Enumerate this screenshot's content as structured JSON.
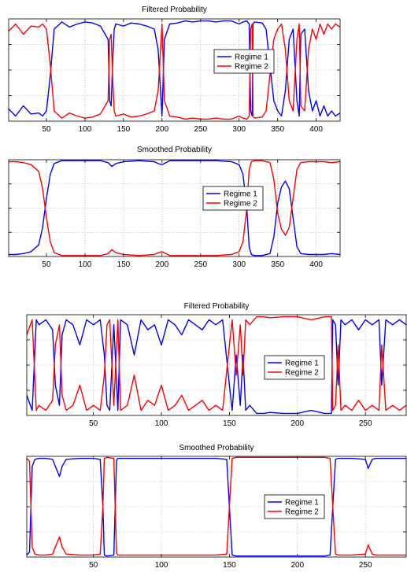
{
  "chart_data": [
    {
      "type": "line",
      "title": "Filtered Probability",
      "xlabel": "",
      "ylabel": "",
      "xlim": [
        1,
        431
      ],
      "ylim": [
        0,
        1
      ],
      "xticks": [
        50,
        100,
        150,
        200,
        250,
        300,
        350,
        400
      ],
      "xtick_labels": [
        "50",
        "100",
        "150",
        "200",
        "250",
        "300",
        "350",
        "400"
      ],
      "legend_position": "right-center",
      "grid": true,
      "series": [
        {
          "name": "Regime 1",
          "color": "#0000ff",
          "x": [
            1,
            10,
            20,
            30,
            40,
            45,
            50,
            55,
            60,
            70,
            80,
            90,
            100,
            110,
            120,
            130,
            132,
            134,
            136,
            138,
            140,
            150,
            160,
            170,
            180,
            190,
            195,
            198,
            200,
            203,
            210,
            220,
            230,
            240,
            250,
            260,
            270,
            280,
            290,
            300,
            305,
            310,
            313,
            315,
            317,
            318,
            320,
            330,
            335,
            340,
            345,
            350,
            355,
            360,
            365,
            370,
            375,
            378,
            380,
            385,
            390,
            395,
            400,
            405,
            410,
            415,
            420,
            425,
            431
          ],
          "y": [
            0.12,
            0.05,
            0.15,
            0.07,
            0.08,
            0.05,
            0.1,
            0.45,
            0.9,
            0.97,
            0.92,
            0.95,
            0.97,
            0.96,
            0.93,
            0.8,
            0.2,
            0.15,
            0.6,
            0.9,
            0.95,
            0.93,
            0.96,
            0.95,
            0.93,
            0.9,
            0.7,
            0.3,
            0.05,
            0.8,
            0.95,
            0.96,
            0.98,
            0.97,
            0.98,
            0.98,
            0.97,
            0.98,
            0.98,
            0.95,
            0.97,
            0.98,
            0.95,
            0.1,
            0.05,
            0.95,
            0.97,
            0.96,
            0.9,
            0.55,
            0.2,
            0.1,
            0.05,
            0.3,
            0.8,
            0.9,
            0.2,
            0.05,
            0.85,
            0.9,
            0.3,
            0.1,
            0.2,
            0.05,
            0.15,
            0.05,
            0.1,
            0.05,
            0.08
          ]
        },
        {
          "name": "Regime 2",
          "color": "#ff0000",
          "x": [
            1,
            10,
            20,
            30,
            40,
            45,
            50,
            55,
            60,
            70,
            80,
            90,
            100,
            110,
            120,
            130,
            132,
            134,
            136,
            138,
            140,
            150,
            160,
            170,
            180,
            190,
            195,
            198,
            200,
            203,
            210,
            220,
            230,
            240,
            250,
            260,
            270,
            280,
            290,
            300,
            305,
            310,
            313,
            315,
            317,
            318,
            320,
            330,
            335,
            340,
            345,
            350,
            355,
            360,
            365,
            370,
            375,
            378,
            380,
            385,
            390,
            395,
            400,
            405,
            410,
            415,
            420,
            425,
            431
          ],
          "y": [
            0.88,
            0.95,
            0.85,
            0.93,
            0.92,
            0.95,
            0.9,
            0.55,
            0.1,
            0.03,
            0.08,
            0.05,
            0.03,
            0.04,
            0.07,
            0.2,
            0.8,
            0.85,
            0.4,
            0.1,
            0.05,
            0.07,
            0.04,
            0.05,
            0.07,
            0.1,
            0.3,
            0.7,
            0.95,
            0.2,
            0.05,
            0.04,
            0.02,
            0.03,
            0.02,
            0.02,
            0.03,
            0.02,
            0.02,
            0.05,
            0.03,
            0.02,
            0.05,
            0.9,
            0.95,
            0.05,
            0.03,
            0.04,
            0.1,
            0.45,
            0.8,
            0.9,
            0.95,
            0.7,
            0.2,
            0.1,
            0.8,
            0.95,
            0.15,
            0.1,
            0.7,
            0.9,
            0.8,
            0.95,
            0.85,
            0.95,
            0.9,
            0.95,
            0.92
          ]
        }
      ]
    },
    {
      "type": "line",
      "title": "Smoothed Probability",
      "xlabel": "",
      "ylabel": "",
      "xlim": [
        1,
        431
      ],
      "ylim": [
        0,
        1
      ],
      "xticks": [
        50,
        100,
        150,
        200,
        250,
        300,
        350,
        400
      ],
      "xtick_labels": [
        "50",
        "100",
        "150",
        "200",
        "250",
        "300",
        "350",
        "400"
      ],
      "legend_position": "center",
      "grid": true,
      "series": [
        {
          "name": "Regime 1",
          "color": "#0000ff",
          "x": [
            1,
            10,
            20,
            30,
            40,
            45,
            50,
            55,
            60,
            70,
            80,
            100,
            120,
            130,
            135,
            140,
            150,
            170,
            190,
            195,
            200,
            205,
            210,
            230,
            250,
            270,
            290,
            300,
            305,
            310,
            313,
            316,
            320,
            330,
            340,
            345,
            350,
            355,
            360,
            365,
            370,
            375,
            380,
            390,
            400,
            410,
            420,
            431
          ],
          "y": [
            0.02,
            0.02,
            0.03,
            0.05,
            0.12,
            0.3,
            0.6,
            0.85,
            0.96,
            0.99,
            0.99,
            0.99,
            0.99,
            0.97,
            0.93,
            0.96,
            0.98,
            0.99,
            0.98,
            0.96,
            0.95,
            0.97,
            0.99,
            0.99,
            0.99,
            0.99,
            0.98,
            0.95,
            0.85,
            0.5,
            0.1,
            0.02,
            0.01,
            0.01,
            0.03,
            0.2,
            0.55,
            0.72,
            0.78,
            0.7,
            0.4,
            0.1,
            0.03,
            0.02,
            0.02,
            0.02,
            0.03,
            0.02
          ]
        },
        {
          "name": "Regime 2",
          "color": "#ff0000",
          "x": [
            1,
            10,
            20,
            30,
            40,
            45,
            50,
            55,
            60,
            70,
            80,
            100,
            120,
            130,
            135,
            140,
            150,
            170,
            190,
            195,
            200,
            205,
            210,
            230,
            250,
            270,
            290,
            300,
            305,
            310,
            313,
            316,
            320,
            330,
            340,
            345,
            350,
            355,
            360,
            365,
            370,
            375,
            380,
            390,
            400,
            410,
            420,
            431
          ],
          "y": [
            0.98,
            0.98,
            0.97,
            0.95,
            0.88,
            0.7,
            0.4,
            0.15,
            0.04,
            0.01,
            0.01,
            0.01,
            0.01,
            0.03,
            0.07,
            0.04,
            0.02,
            0.01,
            0.02,
            0.04,
            0.05,
            0.03,
            0.01,
            0.01,
            0.01,
            0.01,
            0.02,
            0.05,
            0.15,
            0.5,
            0.9,
            0.98,
            0.99,
            0.99,
            0.97,
            0.8,
            0.45,
            0.28,
            0.22,
            0.3,
            0.6,
            0.9,
            0.97,
            0.98,
            0.98,
            0.98,
            0.97,
            0.98
          ]
        }
      ]
    },
    {
      "type": "line",
      "title": "Filtered Probability",
      "xlabel": "",
      "ylabel": "",
      "xlim": [
        1,
        280
      ],
      "ylim": [
        0,
        1
      ],
      "xticks": [
        50,
        100,
        150,
        200,
        250
      ],
      "xtick_labels": [
        "50",
        "100",
        "150",
        "200",
        "250"
      ],
      "legend_position": "right-center",
      "grid": true,
      "series": [
        {
          "name": "Regime 1",
          "color": "#0000ff",
          "x": [
            1,
            5,
            8,
            10,
            15,
            20,
            22,
            25,
            27,
            30,
            35,
            40,
            45,
            50,
            55,
            58,
            60,
            62,
            65,
            68,
            70,
            75,
            80,
            85,
            90,
            95,
            100,
            105,
            110,
            115,
            120,
            125,
            130,
            135,
            140,
            145,
            150,
            152,
            155,
            158,
            160,
            162,
            165,
            170,
            175,
            180,
            190,
            200,
            210,
            220,
            225,
            226,
            228,
            230,
            232,
            235,
            240,
            245,
            250,
            255,
            260,
            262,
            265,
            270,
            275,
            280
          ],
          "y": [
            0.2,
            0.05,
            0.95,
            0.9,
            0.95,
            0.85,
            0.3,
            0.1,
            0.8,
            0.95,
            0.9,
            0.7,
            0.95,
            0.9,
            0.95,
            0.6,
            0.1,
            0.05,
            0.9,
            0.05,
            0.95,
            0.9,
            0.6,
            0.95,
            0.85,
            0.9,
            0.7,
            0.95,
            0.9,
            0.8,
            0.95,
            0.9,
            0.85,
            0.95,
            0.9,
            0.95,
            0.3,
            0.05,
            0.6,
            0.1,
            0.6,
            0.05,
            0.1,
            0.02,
            0.02,
            0.03,
            0.02,
            0.02,
            0.05,
            0.02,
            0.02,
            0.95,
            0.9,
            0.3,
            0.95,
            0.9,
            0.95,
            0.85,
            0.95,
            0.9,
            0.95,
            0.3,
            0.95,
            0.9,
            0.95,
            0.9
          ]
        },
        {
          "name": "Regime 2",
          "color": "#ff0000",
          "x": [
            1,
            5,
            8,
            10,
            15,
            20,
            22,
            25,
            27,
            30,
            35,
            40,
            45,
            50,
            55,
            58,
            60,
            62,
            65,
            68,
            70,
            75,
            80,
            85,
            90,
            95,
            100,
            105,
            110,
            115,
            120,
            125,
            130,
            135,
            140,
            145,
            150,
            152,
            155,
            158,
            160,
            162,
            165,
            170,
            175,
            180,
            190,
            200,
            210,
            220,
            225,
            226,
            228,
            230,
            232,
            235,
            240,
            245,
            250,
            255,
            260,
            262,
            265,
            270,
            275,
            280
          ],
          "y": [
            0.8,
            0.95,
            0.05,
            0.1,
            0.05,
            0.15,
            0.7,
            0.9,
            0.2,
            0.05,
            0.1,
            0.3,
            0.05,
            0.1,
            0.05,
            0.4,
            0.9,
            0.95,
            0.1,
            0.95,
            0.05,
            0.1,
            0.4,
            0.05,
            0.15,
            0.1,
            0.3,
            0.05,
            0.1,
            0.2,
            0.05,
            0.1,
            0.15,
            0.05,
            0.1,
            0.05,
            0.7,
            0.95,
            0.4,
            0.9,
            0.4,
            0.95,
            0.9,
            0.98,
            0.98,
            0.97,
            0.98,
            0.98,
            0.95,
            0.98,
            0.98,
            0.05,
            0.1,
            0.7,
            0.05,
            0.1,
            0.05,
            0.15,
            0.05,
            0.1,
            0.05,
            0.7,
            0.05,
            0.1,
            0.05,
            0.1
          ]
        }
      ]
    },
    {
      "type": "line",
      "title": "Smoothed Probability",
      "xlabel": "",
      "ylabel": "",
      "xlim": [
        1,
        280
      ],
      "ylim": [
        0,
        1
      ],
      "xticks": [
        50,
        100,
        150,
        200,
        250
      ],
      "xtick_labels": [
        "50",
        "100",
        "150",
        "200",
        "250"
      ],
      "legend_position": "right-center",
      "grid": true,
      "series": [
        {
          "name": "Regime 1",
          "color": "#0000ff",
          "x": [
            1,
            3,
            5,
            7,
            10,
            15,
            20,
            22,
            25,
            27,
            30,
            40,
            50,
            55,
            57,
            58,
            60,
            65,
            66,
            67,
            68,
            70,
            80,
            100,
            120,
            140,
            148,
            150,
            152,
            155,
            160,
            180,
            200,
            220,
            224,
            226,
            228,
            230,
            240,
            250,
            252,
            255,
            258,
            260,
            270,
            280
          ],
          "y": [
            0.02,
            0.05,
            0.9,
            0.97,
            0.98,
            0.98,
            0.97,
            0.9,
            0.8,
            0.9,
            0.97,
            0.98,
            0.98,
            0.97,
            0.5,
            0.02,
            0.01,
            0.02,
            0.5,
            0.96,
            0.98,
            0.98,
            0.98,
            0.98,
            0.98,
            0.98,
            0.97,
            0.5,
            0.02,
            0.01,
            0.01,
            0.01,
            0.01,
            0.01,
            0.02,
            0.5,
            0.97,
            0.98,
            0.98,
            0.97,
            0.88,
            0.97,
            0.98,
            0.98,
            0.98,
            0.98
          ]
        },
        {
          "name": "Regime 2",
          "color": "#ff0000",
          "x": [
            1,
            3,
            5,
            7,
            10,
            15,
            20,
            22,
            25,
            27,
            30,
            40,
            50,
            55,
            57,
            58,
            60,
            65,
            66,
            67,
            68,
            70,
            80,
            100,
            120,
            140,
            148,
            150,
            152,
            155,
            160,
            180,
            200,
            220,
            224,
            226,
            228,
            230,
            240,
            250,
            252,
            255,
            258,
            260,
            270,
            280
          ],
          "y": [
            0.98,
            0.95,
            0.1,
            0.03,
            0.02,
            0.02,
            0.03,
            0.1,
            0.2,
            0.1,
            0.03,
            0.02,
            0.02,
            0.03,
            0.5,
            0.98,
            0.99,
            0.98,
            0.5,
            0.04,
            0.02,
            0.02,
            0.02,
            0.02,
            0.02,
            0.02,
            0.03,
            0.5,
            0.98,
            0.99,
            0.99,
            0.99,
            0.99,
            0.99,
            0.98,
            0.5,
            0.03,
            0.02,
            0.02,
            0.03,
            0.12,
            0.03,
            0.02,
            0.02,
            0.02,
            0.02
          ]
        }
      ]
    }
  ]
}
